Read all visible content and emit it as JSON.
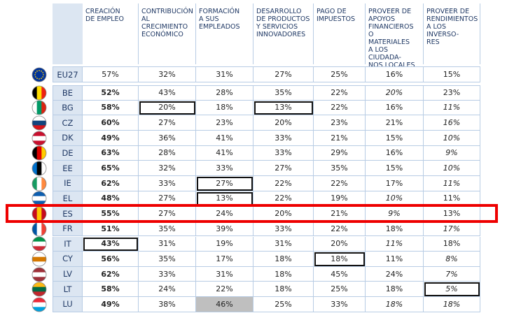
{
  "table": {
    "headers": [
      [
        "CREACIÓN",
        "DE EMPLEO"
      ],
      [
        "CONTRIBUCIÓN",
        "AL CRECIMIENTO",
        "ECONÓMICO"
      ],
      [
        "FORMACIÓN",
        "A SUS EMPLEADOS"
      ],
      [
        "DESARROLLO",
        "DE PRODUCTOS",
        "Y SERVICIOS",
        "INNOVADORES"
      ],
      [
        "PAGO DE",
        "IMPUESTOS"
      ],
      [
        "PROVEER DE",
        "APOYOS",
        "FINANCIEROS O",
        "MATERIALES",
        "A LOS CIUDADA-",
        "NOS LOCALES"
      ],
      [
        "PROVEER DE",
        "RENDIMIENTOS",
        "A LOS INVERSO-",
        "RES"
      ]
    ],
    "rows": [
      {
        "code": "EU27",
        "values": [
          "57%",
          "32%",
          "31%",
          "27%",
          "25%",
          "16%",
          "15%"
        ]
      },
      {
        "code": "BE",
        "values": [
          "52%",
          "43%",
          "28%",
          "35%",
          "22%",
          "20%",
          "23%"
        ]
      },
      {
        "code": "BG",
        "values": [
          "58%",
          "20%",
          "18%",
          "13%",
          "22%",
          "16%",
          "11%"
        ]
      },
      {
        "code": "CZ",
        "values": [
          "60%",
          "27%",
          "23%",
          "20%",
          "23%",
          "21%",
          "16%"
        ]
      },
      {
        "code": "DK",
        "values": [
          "49%",
          "36%",
          "41%",
          "33%",
          "21%",
          "15%",
          "10%"
        ]
      },
      {
        "code": "DE",
        "values": [
          "63%",
          "28%",
          "41%",
          "33%",
          "29%",
          "16%",
          "9%"
        ]
      },
      {
        "code": "EE",
        "values": [
          "65%",
          "32%",
          "33%",
          "27%",
          "35%",
          "15%",
          "10%"
        ]
      },
      {
        "code": "IE",
        "values": [
          "62%",
          "33%",
          "27%",
          "22%",
          "22%",
          "17%",
          "11%"
        ]
      },
      {
        "code": "EL",
        "values": [
          "48%",
          "27%",
          "13%",
          "22%",
          "19%",
          "10%",
          "11%"
        ]
      },
      {
        "code": "ES",
        "values": [
          "55%",
          "27%",
          "24%",
          "20%",
          "21%",
          "9%",
          "13%"
        ]
      },
      {
        "code": "FR",
        "values": [
          "51%",
          "35%",
          "39%",
          "33%",
          "22%",
          "18%",
          "17%"
        ]
      },
      {
        "code": "IT",
        "values": [
          "43%",
          "31%",
          "19%",
          "31%",
          "20%",
          "11%",
          "18%"
        ]
      },
      {
        "code": "CY",
        "values": [
          "56%",
          "35%",
          "17%",
          "18%",
          "18%",
          "11%",
          "8%"
        ]
      },
      {
        "code": "LV",
        "values": [
          "62%",
          "33%",
          "31%",
          "18%",
          "45%",
          "24%",
          "7%"
        ]
      },
      {
        "code": "LT",
        "values": [
          "58%",
          "24%",
          "22%",
          "18%",
          "25%",
          "18%",
          "5%"
        ]
      },
      {
        "code": "LU",
        "values": [
          "49%",
          "38%",
          "46%",
          "25%",
          "33%",
          "18%",
          "18%"
        ]
      }
    ]
  }
}
